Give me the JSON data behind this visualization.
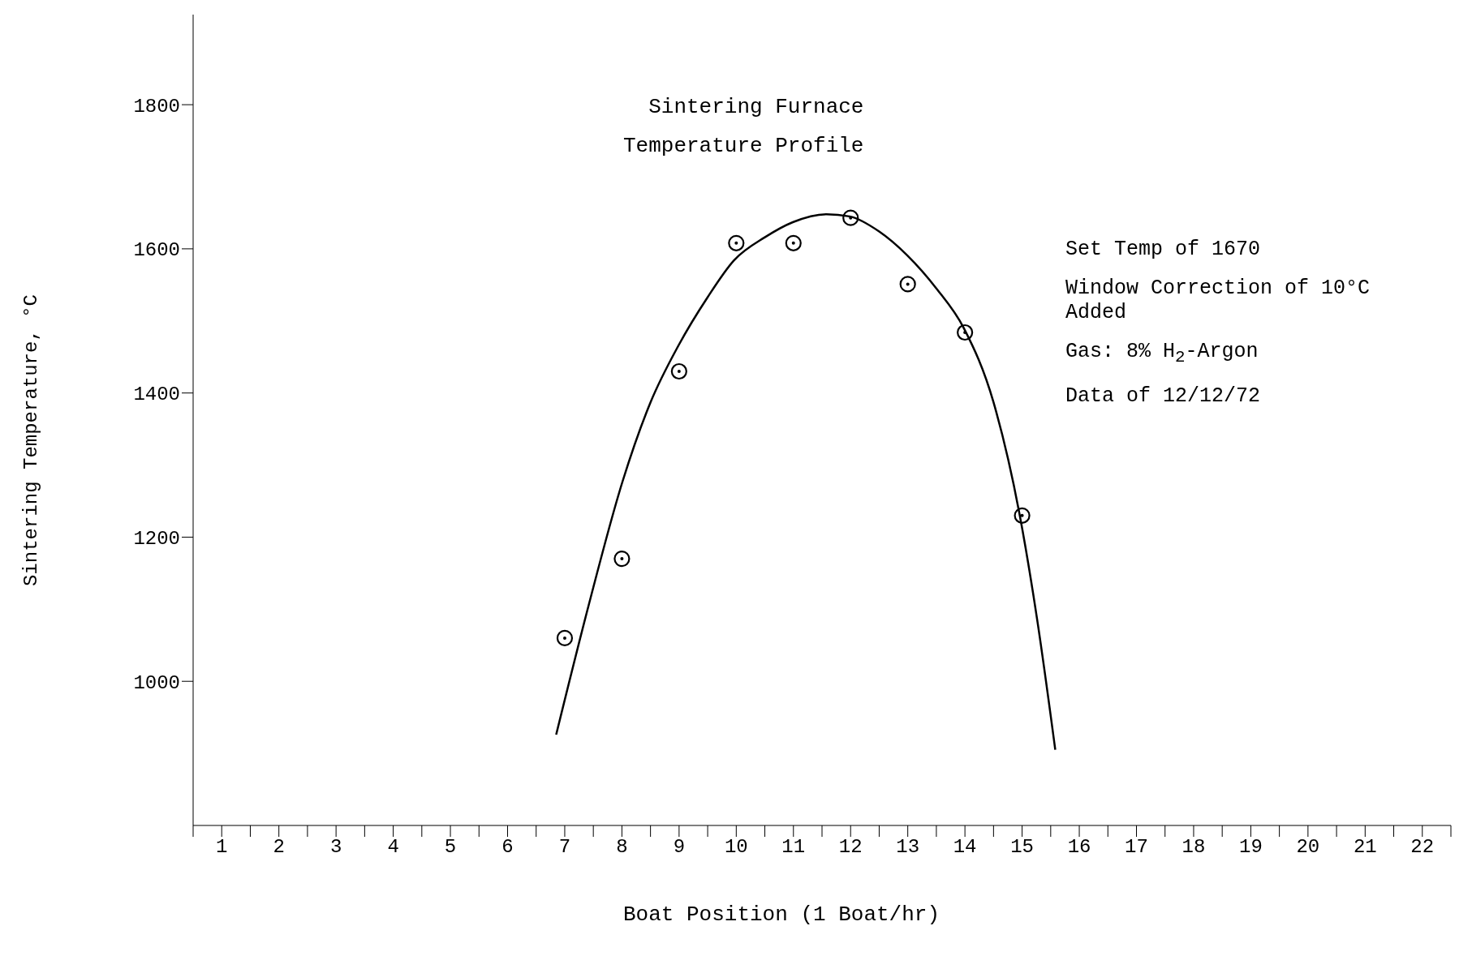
{
  "chart_data": {
    "type": "scatter",
    "title": "Sintering Furnace",
    "subtitle": "Temperature Profile",
    "xlabel": "Boat Position (1 Boat/hr)",
    "ylabel": "Sintering Temperature, °C",
    "annotations": [
      "Set Temp of 1670",
      "Window Correction of 10°C Added",
      "Gas:  8% H$_{2}$-Argon",
      "Data of 12/12/72"
    ],
    "xlim": [
      0.5,
      22.5
    ],
    "xticks": [
      {
        "value": 0.5,
        "label": null
      },
      1,
      {
        "value": 1.5,
        "label": null
      },
      2,
      {
        "value": 2.5,
        "label": null
      },
      3,
      {
        "value": 3.5,
        "label": null
      },
      4,
      {
        "value": 4.5,
        "label": null
      },
      5,
      {
        "value": 5.5,
        "label": null
      },
      6,
      {
        "value": 6.5,
        "label": null
      },
      7,
      {
        "value": 7.5,
        "label": null
      },
      8,
      {
        "value": 8.5,
        "label": null
      },
      9,
      {
        "value": 9.5,
        "label": null
      },
      10,
      {
        "value": 10.5,
        "label": null
      },
      11,
      {
        "value": 11.5,
        "label": null
      },
      12,
      {
        "value": 12.5,
        "label": null
      },
      13,
      {
        "value": 13.5,
        "label": null
      },
      14,
      {
        "value": 14.5,
        "label": null
      },
      15,
      {
        "value": 15.5,
        "label": null
      },
      16,
      {
        "value": 16.5,
        "label": null
      },
      17,
      {
        "value": 17.5,
        "label": null
      },
      18,
      {
        "value": 18.5,
        "label": null
      },
      19,
      {
        "value": 19.5,
        "label": null
      },
      20,
      {
        "value": 20.5,
        "label": null
      },
      21,
      {
        "value": 21.5,
        "label": null
      },
      22,
      {
        "value": 22.5,
        "label": null
      }
    ],
    "ylim": [
      800,
      1925
    ],
    "yticks": [
      1000,
      1200,
      1400,
      1600,
      1800
    ],
    "grid": false,
    "legend": false,
    "series": [
      {
        "type": "scatter",
        "color": "#000000",
        "marker": "circle",
        "x": [
          7,
          8,
          9,
          10,
          11,
          12,
          13,
          14,
          15
        ],
        "values": [
          1060,
          1170,
          1430,
          1608,
          1608,
          1643,
          1551,
          1484,
          1230
        ]
      },
      {
        "type": "line",
        "color": "#000000",
        "marker": "none",
        "line_style": "solid",
        "x": [
          6.85,
          7.42,
          8.01,
          8.5,
          8.99,
          9.5,
          9.96,
          10.5,
          10.99,
          11.58,
          11.98,
          12.5,
          12.99,
          13.5,
          13.98,
          14.5,
          14.95,
          15.27,
          15.58
        ],
        "values": [
          926,
          1106,
          1277,
          1387,
          1466,
          1533,
          1584,
          1616,
          1637,
          1648,
          1645,
          1624,
          1591,
          1545,
          1490,
          1387,
          1234,
          1082,
          905
        ]
      }
    ]
  }
}
